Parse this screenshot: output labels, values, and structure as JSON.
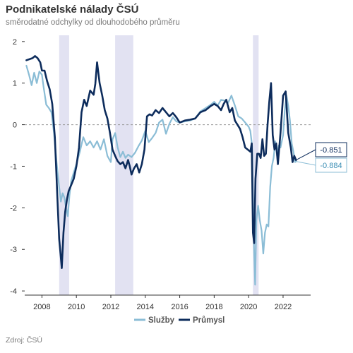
{
  "header": {
    "title": "Podnikatelské nálady ČSÚ",
    "subtitle": "směrodatné odchylky od dlouhodobého průměru"
  },
  "footer": {
    "source": "Zdroj: ČSÚ"
  },
  "colors": {
    "sluzby": "#8bbdd6",
    "prumysl": "#0d2c5c",
    "recession": "#e2e2f2",
    "zero": "#999999",
    "axis": "#333333"
  },
  "chart_data": {
    "type": "line",
    "title": "Podnikatelské nálady ČSÚ",
    "subtitle": "směrodatné odchylky od dlouhodobého průměru",
    "xlabel": "",
    "ylabel": "",
    "xlim": [
      2007.0,
      2023.6
    ],
    "ylim": [
      -4.1,
      2.15
    ],
    "x_ticks": [
      2008,
      2010,
      2012,
      2014,
      2016,
      2018,
      2020,
      2022
    ],
    "x_tick_labels": [
      "2008",
      "2010",
      "2012",
      "2014",
      "2016",
      "2018",
      "2020",
      "2022"
    ],
    "y_ticks": [
      2,
      1,
      0,
      -1,
      -2,
      -3,
      -4
    ],
    "y_tick_labels": [
      "2",
      "1",
      "0",
      "-1",
      "-2",
      "-3",
      "-4"
    ],
    "zero_line": true,
    "grid": false,
    "legend_position": "bottom-center",
    "shaded_periods": [
      [
        2009.0,
        2009.58
      ],
      [
        2012.25,
        2013.3
      ],
      [
        2020.25,
        2020.58
      ]
    ],
    "series": [
      {
        "name": "Služby",
        "color": "#8bbdd6",
        "last_label": "-0.884",
        "x": [
          2007.1,
          2007.25,
          2007.4,
          2007.55,
          2007.7,
          2007.85,
          2008.0,
          2008.1,
          2008.25,
          2008.4,
          2008.55,
          2008.7,
          2008.85,
          2009.0,
          2009.1,
          2009.2,
          2009.3,
          2009.4,
          2009.5,
          2009.6,
          2009.7,
          2009.85,
          2010.0,
          2010.2,
          2010.4,
          2010.6,
          2010.8,
          2011.0,
          2011.2,
          2011.4,
          2011.6,
          2011.8,
          2012.0,
          2012.1,
          2012.25,
          2012.4,
          2012.55,
          2012.7,
          2012.85,
          2013.0,
          2013.2,
          2013.4,
          2013.6,
          2013.8,
          2014.0,
          2014.2,
          2014.4,
          2014.6,
          2014.8,
          2015.0,
          2015.2,
          2015.4,
          2015.6,
          2015.8,
          2016.0,
          2016.3,
          2016.6,
          2016.9,
          2017.2,
          2017.5,
          2017.8,
          2018.0,
          2018.2,
          2018.4,
          2018.6,
          2018.8,
          2019.0,
          2019.2,
          2019.4,
          2019.6,
          2019.8,
          2020.0,
          2020.1,
          2020.2,
          2020.3,
          2020.38,
          2020.45,
          2020.55,
          2020.65,
          2020.75,
          2020.85,
          2020.95,
          2021.05,
          2021.15,
          2021.25,
          2021.35,
          2021.45,
          2021.55,
          2021.65,
          2021.75,
          2021.85,
          2022.0,
          2022.1,
          2022.2,
          2022.3,
          2022.4,
          2022.5,
          2022.6,
          2022.7,
          2022.75
        ],
        "y": [
          1.42,
          1.2,
          0.95,
          1.25,
          1.0,
          1.28,
          1.2,
          0.9,
          0.48,
          0.4,
          0.3,
          -0.2,
          -0.9,
          -1.5,
          -1.85,
          -1.65,
          -1.75,
          -2.0,
          -2.2,
          -1.7,
          -1.35,
          -1.15,
          -0.95,
          -0.65,
          -0.3,
          -0.5,
          -0.4,
          -0.55,
          -0.4,
          -0.6,
          -0.35,
          -0.75,
          -0.9,
          -0.35,
          -0.2,
          -0.55,
          -0.78,
          -0.65,
          -0.8,
          -0.72,
          -0.78,
          -0.68,
          -0.52,
          -0.38,
          -0.15,
          -0.42,
          -0.32,
          -0.2,
          0.05,
          0.12,
          -0.22,
          0.02,
          0.18,
          0.08,
          0.05,
          0.08,
          0.1,
          0.15,
          0.32,
          0.4,
          0.48,
          0.55,
          0.46,
          0.6,
          0.58,
          0.52,
          0.7,
          0.46,
          0.2,
          0.15,
          0.05,
          -0.05,
          -0.15,
          -0.5,
          -2.8,
          -3.85,
          -2.3,
          -1.95,
          -2.3,
          -2.55,
          -3.1,
          -2.6,
          -2.4,
          -2.45,
          -1.5,
          -1.0,
          -0.8,
          -0.4,
          -0.75,
          -0.5,
          -0.55,
          -0.25,
          0.35,
          0.7,
          0.45,
          0.1,
          -0.45,
          -0.65,
          -0.9,
          -0.884
        ]
      },
      {
        "name": "Průmysl",
        "color": "#0d2c5c",
        "last_label": "-0.851",
        "x": [
          2007.1,
          2007.3,
          2007.45,
          2007.6,
          2007.75,
          2007.9,
          2008.0,
          2008.15,
          2008.3,
          2008.45,
          2008.6,
          2008.75,
          2008.9,
          2009.0,
          2009.08,
          2009.15,
          2009.25,
          2009.35,
          2009.45,
          2009.55,
          2009.7,
          2009.85,
          2010.0,
          2010.15,
          2010.3,
          2010.45,
          2010.6,
          2010.8,
          2011.0,
          2011.1,
          2011.2,
          2011.35,
          2011.5,
          2011.65,
          2011.8,
          2011.95,
          2012.1,
          2012.25,
          2012.4,
          2012.55,
          2012.7,
          2012.85,
          2013.0,
          2013.1,
          2013.2,
          2013.35,
          2013.5,
          2013.65,
          2013.8,
          2013.95,
          2014.1,
          2014.25,
          2014.4,
          2014.6,
          2014.8,
          2015.0,
          2015.2,
          2015.4,
          2015.6,
          2015.8,
          2016.0,
          2016.3,
          2016.6,
          2016.9,
          2017.2,
          2017.5,
          2017.8,
          2018.0,
          2018.2,
          2018.4,
          2018.55,
          2018.7,
          2018.9,
          2019.05,
          2019.2,
          2019.35,
          2019.5,
          2019.65,
          2019.8,
          2019.95,
          2020.1,
          2020.18,
          2020.25,
          2020.32,
          2020.4,
          2020.5,
          2020.6,
          2020.7,
          2020.8,
          2020.9,
          2021.0,
          2021.1,
          2021.2,
          2021.3,
          2021.4,
          2021.5,
          2021.6,
          2021.7,
          2021.85,
          2022.0,
          2022.15,
          2022.3,
          2022.45,
          2022.55,
          2022.65,
          2022.75
        ],
        "y": [
          1.55,
          1.58,
          1.6,
          1.65,
          1.6,
          1.5,
          1.3,
          1.3,
          1.05,
          0.85,
          0.5,
          -0.3,
          -1.8,
          -2.75,
          -3.1,
          -3.45,
          -2.6,
          -2.1,
          -1.8,
          -1.6,
          -1.45,
          -1.3,
          -1.0,
          -0.55,
          0.3,
          0.6,
          0.45,
          0.82,
          0.72,
          0.98,
          1.5,
          1.0,
          0.7,
          0.35,
          0.15,
          -0.2,
          -0.6,
          -0.75,
          -0.88,
          -0.95,
          -0.9,
          -1.05,
          -0.85,
          -1.0,
          -1.2,
          -1.05,
          -0.95,
          -1.15,
          -0.95,
          -0.6,
          0.2,
          0.25,
          0.22,
          0.35,
          0.28,
          0.4,
          0.3,
          0.2,
          0.28,
          0.18,
          0.05,
          0.1,
          0.12,
          0.15,
          0.3,
          0.35,
          0.45,
          0.5,
          0.45,
          0.35,
          0.5,
          0.6,
          0.3,
          0.4,
          0.1,
          0.0,
          -0.1,
          -0.3,
          -0.55,
          -0.6,
          -0.65,
          -0.45,
          -2.6,
          -2.85,
          -1.3,
          -0.7,
          -0.7,
          -0.8,
          -0.35,
          -0.75,
          -0.7,
          0.0,
          0.55,
          1.0,
          -0.25,
          -0.6,
          -0.45,
          -0.95,
          -0.2,
          0.7,
          0.8,
          -0.2,
          -0.55,
          -0.9,
          -0.75,
          -0.851
        ]
      }
    ]
  }
}
